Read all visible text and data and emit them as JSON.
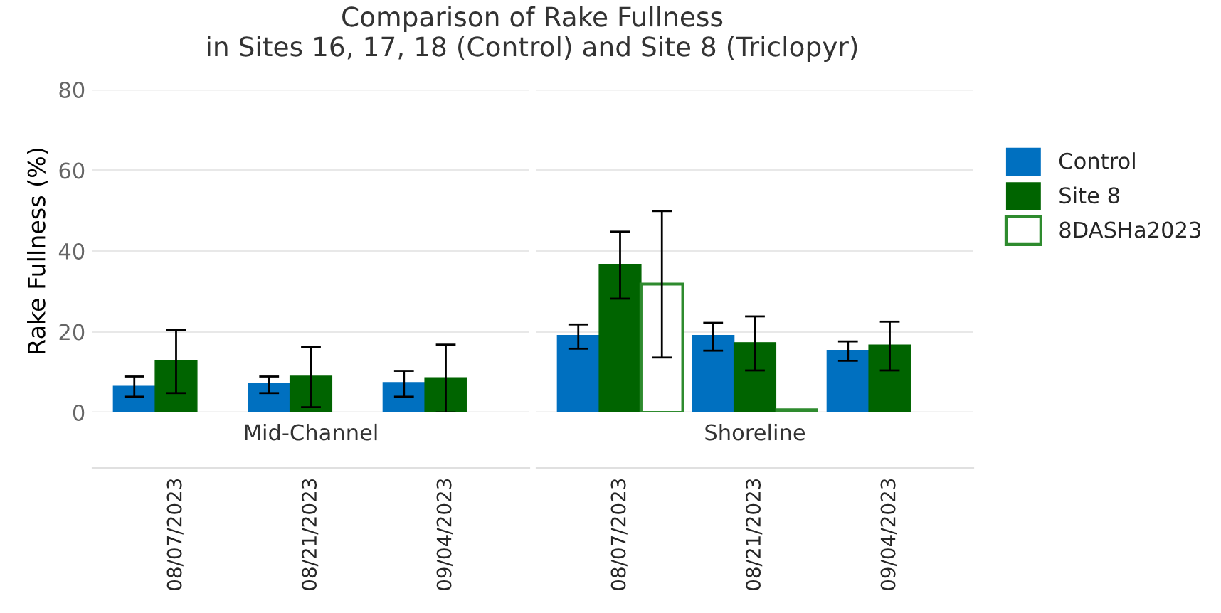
{
  "chart_data": [
    {
      "type": "bar",
      "title": "Comparison of Rake Fullness\nin Sites 16, 17, 18 (Control) and Site 8 (Triclopyr)",
      "subtitle": "Mid-Channel",
      "ylabel": "Rake Fullness (%)",
      "categories": [
        "08/07/2023",
        "08/21/2023",
        "09/04/2023"
      ],
      "ylim": [
        0,
        80
      ],
      "yticks": [
        0,
        20,
        40,
        60,
        80
      ],
      "grid": "y",
      "legend": false,
      "series": [
        {
          "color": "#0070c0",
          "values": [
            6.5,
            7.1,
            7.4
          ],
          "errors": [
            [
              3.9,
              8.9
            ],
            [
              4.8,
              8.9
            ],
            [
              3.9,
              10.3
            ]
          ]
        },
        {
          "color": "#006400",
          "values": [
            12.9,
            9.0,
            8.6
          ],
          "errors": [
            [
              4.8,
              20.5
            ],
            [
              1.3,
              16.2
            ],
            [
              0,
              16.8
            ]
          ]
        },
        {
          "color": "#ffffff",
          "colors": [
            "#ffffff",
            "#2e8b2e",
            "#2e8b2e"
          ],
          "values": [
            null,
            0,
            0
          ]
        }
      ]
    },
    {
      "type": "bar",
      "subtitle": "Shoreline",
      "categories": [
        "08/07/2023",
        "08/21/2023",
        "09/04/2023"
      ],
      "ylim": [
        0,
        80
      ],
      "yticks": [
        0,
        20,
        40,
        60,
        80
      ],
      "grid": "y",
      "legend": "right",
      "tick_labels": "x",
      "series": [
        {
          "name": "Control",
          "color": "#0070c0",
          "values": [
            19.1,
            19.1,
            15.4
          ],
          "errors": [
            [
              15.8,
              21.8
            ],
            [
              15.3,
              22.2
            ],
            [
              12.8,
              17.6
            ]
          ]
        },
        {
          "name": "Site 8",
          "color": "#006400",
          "values": [
            36.7,
            17.3,
            16.7
          ],
          "errors": [
            [
              28.2,
              44.8
            ],
            [
              10.4,
              23.8
            ],
            [
              10.4,
              22.5
            ]
          ]
        },
        {
          "name": "8DASHa2023",
          "color": "#ffffff",
          "colors": [
            "#ffffff",
            "#2e8b2e",
            "#2e8b2e"
          ],
          "values": [
            31.8,
            0.9,
            0
          ],
          "errors": [
            [
              13.6,
              49.9
            ],
            null,
            null
          ]
        }
      ]
    }
  ]
}
